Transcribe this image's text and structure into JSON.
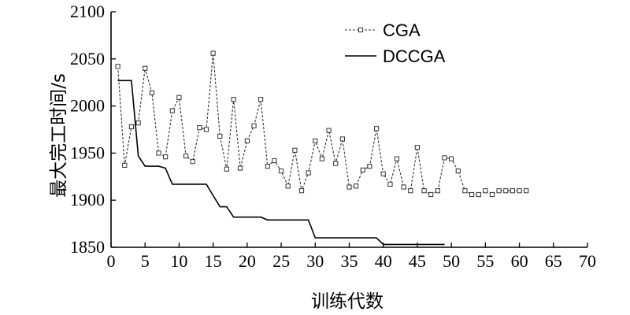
{
  "chart_data": {
    "type": "line",
    "title": "",
    "xlabel": "训练代数",
    "ylabel": "最大完工时间/s",
    "xlim": [
      0,
      70
    ],
    "ylim": [
      1850,
      2100
    ],
    "xticks": [
      0,
      5,
      10,
      15,
      20,
      25,
      30,
      35,
      40,
      45,
      50,
      55,
      60,
      65,
      70
    ],
    "yticks": [
      1850,
      1900,
      1950,
      2000,
      2050,
      2100
    ],
    "grid": false,
    "legend_position": "top-right",
    "series": [
      {
        "name": "CGA",
        "style": "dashed-square-markers",
        "color": "#333333",
        "x": [
          1,
          2,
          3,
          4,
          5,
          6,
          7,
          8,
          9,
          10,
          11,
          12,
          13,
          14,
          15,
          16,
          17,
          18,
          19,
          20,
          21,
          22,
          23,
          24,
          25,
          26,
          27,
          28,
          29,
          30,
          31,
          32,
          33,
          34,
          35,
          36,
          37,
          38,
          39,
          40,
          41,
          42,
          43,
          44,
          45,
          46,
          47,
          48,
          49,
          50,
          51,
          52,
          53,
          54,
          55,
          56,
          57,
          58,
          59,
          60,
          61
        ],
        "y": [
          2042,
          1937,
          1978,
          1982,
          2040,
          2014,
          1950,
          1946,
          1995,
          2009,
          1947,
          1941,
          1977,
          1975,
          2056,
          1968,
          1933,
          2007,
          1934,
          1963,
          1979,
          2007,
          1936,
          1942,
          1931,
          1915,
          1953,
          1910,
          1929,
          1963,
          1944,
          1974,
          1939,
          1965,
          1914,
          1915,
          1932,
          1936,
          1976,
          1928,
          1917,
          1944,
          1914,
          1910,
          1956,
          1910,
          1906,
          1910,
          1945,
          1944,
          1931,
          1910,
          1906,
          1906,
          1910,
          1906,
          1910,
          1910,
          1910,
          1910,
          1910
        ]
      },
      {
        "name": "DCCGA",
        "style": "solid",
        "color": "#000000",
        "x": [
          1,
          2,
          3,
          4,
          5,
          6,
          7,
          8,
          9,
          10,
          11,
          12,
          13,
          14,
          15,
          16,
          17,
          18,
          19,
          20,
          21,
          22,
          23,
          24,
          25,
          26,
          27,
          28,
          29,
          30,
          31,
          32,
          33,
          34,
          35,
          36,
          37,
          38,
          39,
          40,
          41,
          42,
          43,
          44,
          45,
          46,
          47,
          48,
          49
        ],
        "y": [
          2027,
          2027,
          2027,
          1947,
          1936,
          1936,
          1936,
          1934,
          1917,
          1917,
          1917,
          1917,
          1917,
          1917,
          1905,
          1893,
          1893,
          1882,
          1882,
          1882,
          1882,
          1882,
          1879,
          1879,
          1879,
          1879,
          1879,
          1879,
          1879,
          1860,
          1860,
          1860,
          1860,
          1860,
          1860,
          1860,
          1860,
          1860,
          1860,
          1853,
          1853,
          1853,
          1853,
          1853,
          1853,
          1853,
          1853,
          1853,
          1853
        ]
      }
    ]
  }
}
